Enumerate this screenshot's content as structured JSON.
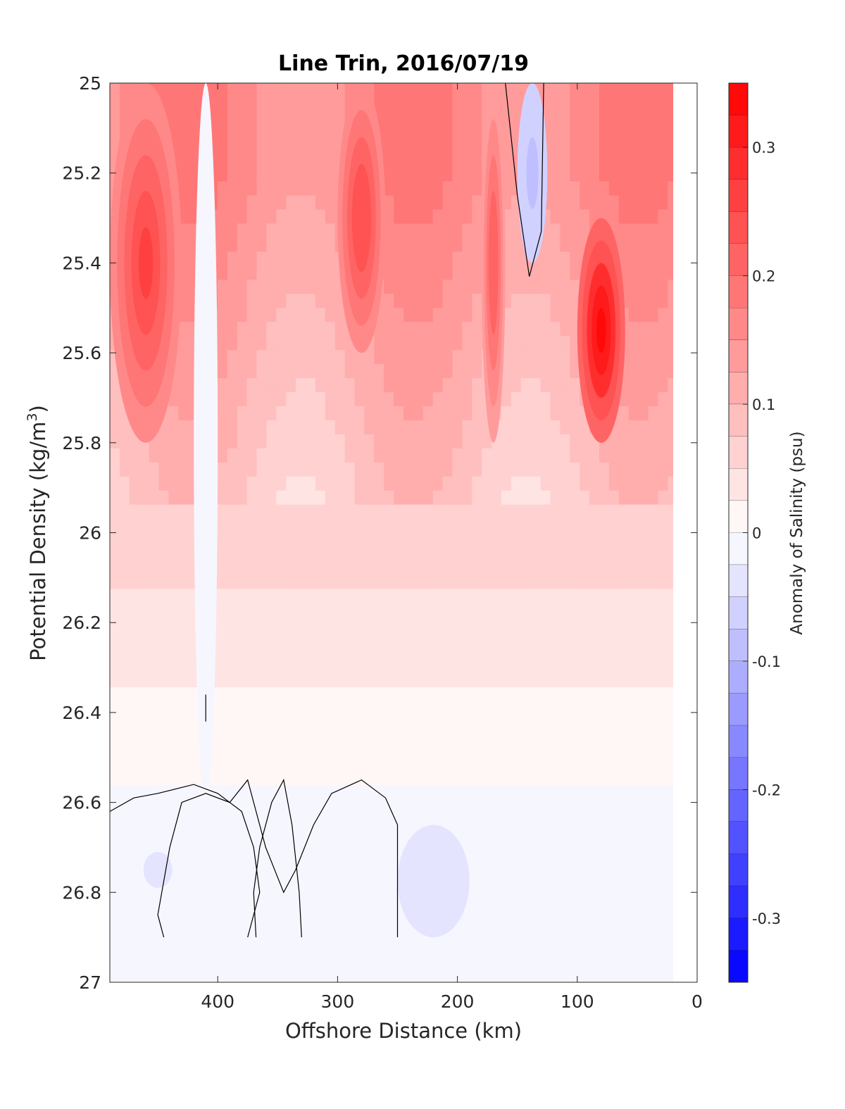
{
  "chart_data": {
    "type": "contour",
    "title": "Line Trin, 2016/07/19",
    "xlabel": "Offshore Distance (km)",
    "ylabel": {
      "main": "Potential Density (kg/m",
      "sup": "3",
      "close": ")"
    },
    "xlim": [
      490,
      0
    ],
    "ylim": [
      25.0,
      27.0
    ],
    "x_reversed": true,
    "y_reversed": true,
    "xticks": [
      400,
      300,
      200,
      100,
      0
    ],
    "xtick_labels": [
      "400",
      "300",
      "200",
      "100",
      "0"
    ],
    "yticks": [
      25.0,
      25.2,
      25.4,
      25.6,
      25.8,
      26.0,
      26.2,
      26.4,
      26.6,
      26.8,
      27.0
    ],
    "ytick_labels": [
      "25",
      "25.2",
      "25.4",
      "25.6",
      "25.8",
      "26",
      "26.2",
      "26.4",
      "26.6",
      "26.8",
      "27"
    ],
    "colorbar": {
      "label": "Anomaly of Salinity (psu)",
      "range": [
        -0.35,
        0.35
      ],
      "levels_step": 0.025,
      "ticks": [
        0.3,
        0.2,
        0.1,
        0,
        -0.1,
        -0.2,
        -0.3
      ],
      "tick_labels": [
        "0.3",
        "0.2",
        "0.1",
        "0",
        "-0.1",
        "-0.2",
        "-0.3"
      ],
      "colormap": "blue-white-red",
      "low_color": "#0000ff",
      "mid_color": "#ffffff",
      "high_color": "#ff0000"
    },
    "sections": [
      {
        "x_range": [
          490,
          430
        ],
        "density_range": [
          25.0,
          25.8
        ],
        "anomaly_peak": 0.27
      },
      {
        "x_range": [
          420,
          400
        ],
        "density_range": [
          25.0,
          26.6
        ],
        "anomaly_peak": 0.0
      },
      {
        "x_range": [
          300,
          260
        ],
        "density_range": [
          25.0,
          25.6
        ],
        "anomaly_peak": 0.25
      },
      {
        "x_range": [
          180,
          160
        ],
        "density_range": [
          25.0,
          25.8
        ],
        "anomaly_peak": 0.22
      },
      {
        "x_range": [
          150,
          125
        ],
        "density_range": [
          25.0,
          25.4
        ],
        "anomaly_peak": -0.09
      },
      {
        "x_range": [
          100,
          60
        ],
        "density_range": [
          25.3,
          25.8
        ],
        "anomaly_peak": 0.34
      },
      {
        "x_range": [
          480,
          420
        ],
        "density_range": [
          26.65,
          26.85
        ],
        "anomaly_peak": -0.03
      },
      {
        "x_range": [
          250,
          190
        ],
        "density_range": [
          26.65,
          26.9
        ],
        "anomaly_peak": -0.04
      }
    ],
    "zero_contours": [
      {
        "name": "surface-blue-lobe",
        "points": [
          [
            160,
            25.0
          ],
          [
            150,
            25.25
          ],
          [
            140,
            25.43
          ],
          [
            130,
            25.33
          ],
          [
            128,
            25.0
          ]
        ]
      },
      {
        "name": "west-deep-contour",
        "points": [
          [
            490,
            26.62
          ],
          [
            470,
            26.59
          ],
          [
            450,
            26.58
          ],
          [
            420,
            26.56
          ],
          [
            400,
            26.58
          ],
          [
            380,
            26.62
          ],
          [
            370,
            26.7
          ],
          [
            365,
            26.8
          ],
          [
            375,
            26.9
          ]
        ]
      },
      {
        "name": "mid-deep-contour",
        "points": [
          [
            330,
            26.9
          ],
          [
            332,
            26.8
          ],
          [
            338,
            26.65
          ],
          [
            345,
            26.55
          ],
          [
            355,
            26.6
          ],
          [
            365,
            26.7
          ],
          [
            370,
            26.8
          ],
          [
            368,
            26.9
          ]
        ]
      },
      {
        "name": "east-deep-contour",
        "points": [
          [
            250,
            26.9
          ],
          [
            250,
            26.65
          ],
          [
            260,
            26.59
          ],
          [
            280,
            26.55
          ],
          [
            305,
            26.58
          ],
          [
            320,
            26.65
          ],
          [
            335,
            26.75
          ],
          [
            345,
            26.8
          ],
          [
            360,
            26.7
          ],
          [
            375,
            26.55
          ],
          [
            390,
            26.6
          ],
          [
            410,
            26.58
          ],
          [
            430,
            26.6
          ],
          [
            440,
            26.7
          ],
          [
            450,
            26.85
          ],
          [
            445,
            26.9
          ]
        ]
      },
      {
        "name": "tiny-contour-26.4",
        "points": [
          [
            410,
            26.36
          ],
          [
            410,
            26.42
          ]
        ]
      }
    ]
  }
}
